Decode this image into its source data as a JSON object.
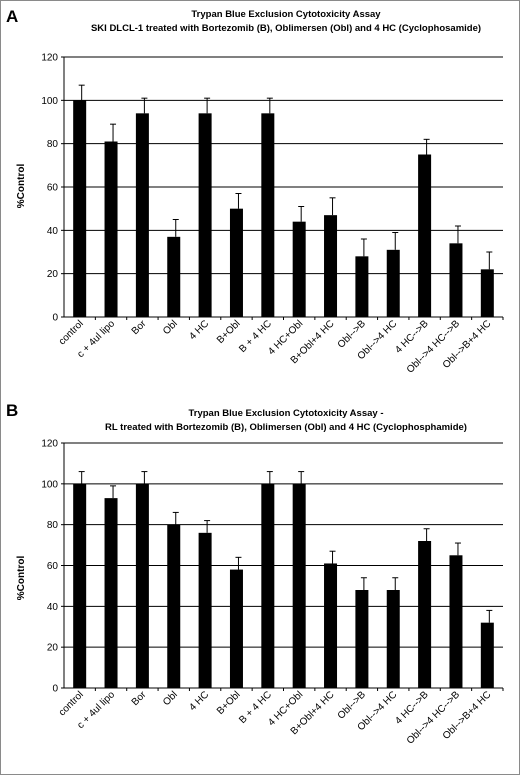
{
  "chart_data": [
    {
      "panel": "A",
      "type": "bar",
      "title": "Trypan Blue Exclusion Cytotoxicity Assay",
      "subtitle": "SKI DLCL-1 treated with Bortezomib (B), Oblimersen (Obl) and 4 HC  (Cyclophosamide)",
      "xlabel": "",
      "ylabel": "%Control",
      "ylim": [
        0,
        120
      ],
      "yticks": [
        0,
        20,
        40,
        60,
        80,
        100,
        120
      ],
      "grid": true,
      "categories": [
        "control",
        "c + 4ul lipo",
        "Bor",
        "Obl",
        "4 HC",
        "B+Obl",
        "B + 4 HC",
        "4 HC+Obl",
        "B+Obl+4 HC",
        "Obl-->B",
        "Obl-->4 HC",
        "4 HC-->B",
        "Obl-->4 HC-->B",
        "Obl-->B+4 HC"
      ],
      "values": [
        100,
        81,
        94,
        37,
        94,
        50,
        94,
        44,
        47,
        28,
        31,
        75,
        34,
        22
      ],
      "errors": [
        7,
        8,
        7,
        8,
        7,
        7,
        7,
        7,
        8,
        8,
        8,
        7,
        8,
        8
      ]
    },
    {
      "panel": "B",
      "type": "bar",
      "title": "Trypan Blue Exclusion Cytotoxicity Assay -",
      "subtitle": "RL treated with Bortezomib (B), Oblimersen (Obl) and 4 HC (Cyclophosphamide)",
      "xlabel": "",
      "ylabel": "%Control",
      "ylim": [
        0,
        120
      ],
      "yticks": [
        0,
        20,
        40,
        60,
        80,
        100,
        120
      ],
      "grid": true,
      "categories": [
        "control",
        "c + 4ul lipo",
        "Bor",
        "Obl",
        "4 HC",
        "B+Obl",
        "B + 4 HC",
        "4 HC+Obl",
        "B+Obl+4 HC",
        "Obl-->B",
        "Obl-->4 HC",
        "4 HC-->B",
        "Obl-->4 HC-->B",
        "Obl-->B+4 HC"
      ],
      "values": [
        100,
        93,
        100,
        80,
        76,
        58,
        100,
        100,
        61,
        48,
        48,
        72,
        65,
        32
      ],
      "errors": [
        6,
        6,
        6,
        6,
        6,
        6,
        6,
        6,
        6,
        6,
        6,
        6,
        6,
        6
      ]
    }
  ]
}
